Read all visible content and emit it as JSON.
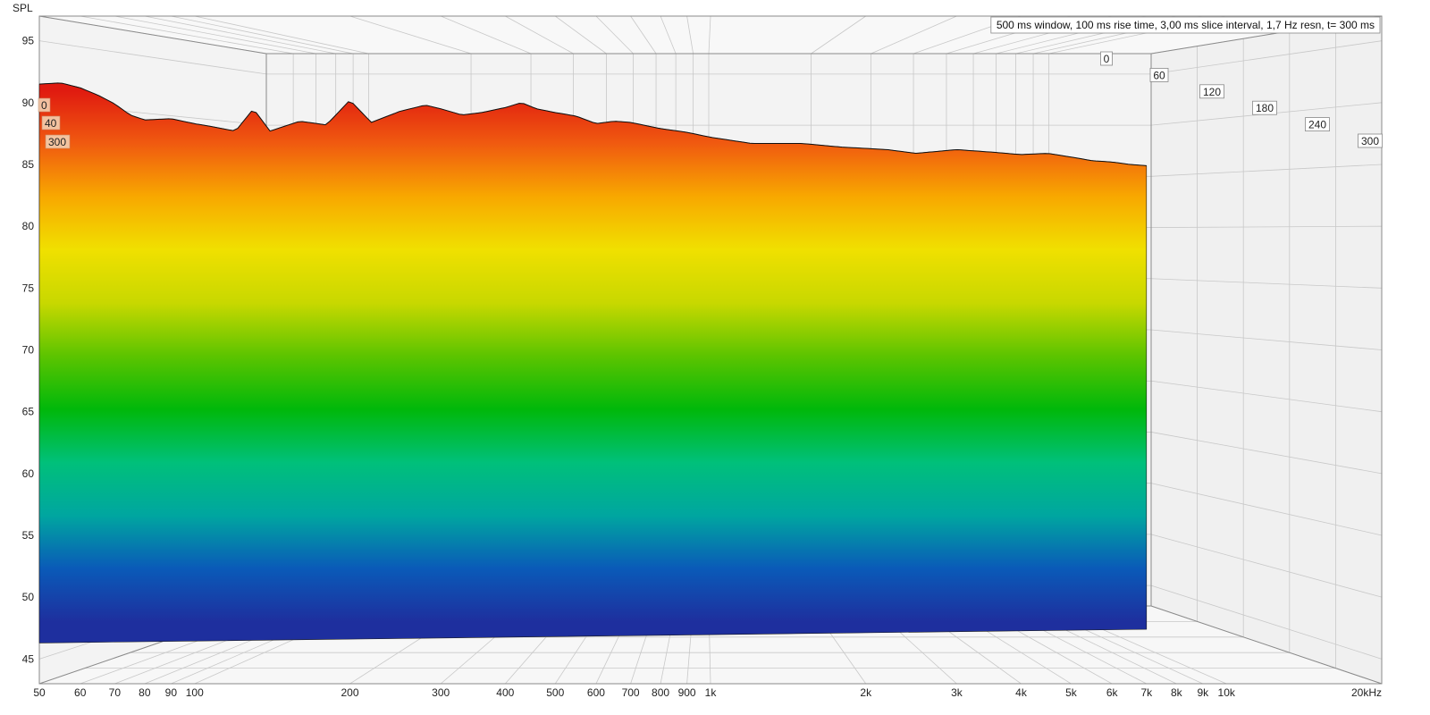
{
  "chart_data": {
    "type": "area",
    "subtype": "waterfall-3d",
    "title": "",
    "xlabel": "",
    "ylabel": "SPL",
    "x_scale": "log",
    "x_tick_labels": [
      "50",
      "60",
      "70",
      "80",
      "90",
      "100",
      "200",
      "300",
      "400",
      "500",
      "600",
      "700",
      "800",
      "900",
      "1k",
      "2k",
      "3k",
      "4k",
      "5k",
      "6k",
      "7k",
      "8k",
      "9k",
      "10k",
      "20kHz"
    ],
    "x_tick_values": [
      50,
      60,
      70,
      80,
      90,
      100,
      200,
      300,
      400,
      500,
      600,
      700,
      800,
      900,
      1000,
      2000,
      3000,
      4000,
      5000,
      6000,
      7000,
      8000,
      9000,
      10000,
      20000
    ],
    "y_ticks": [
      95,
      90,
      85,
      80,
      75,
      70,
      65,
      60,
      55,
      50,
      45
    ],
    "ylim": [
      43,
      97
    ],
    "xlim": [
      50,
      20000
    ],
    "depth_axis_labels": [
      "0",
      "60",
      "120",
      "180",
      "240",
      "300"
    ],
    "time_ms": [
      0,
      60,
      120,
      180,
      240,
      300
    ],
    "info_text": "500 ms window, 100 ms rise time, 3,00 ms slice interval, 1,7 Hz resn, t= 300 ms",
    "left_slice_labels": [
      "0",
      "40",
      "300"
    ],
    "grid": true,
    "front_slice": {
      "name": "0",
      "x": [
        50,
        55,
        60,
        65,
        70,
        75,
        80,
        90,
        100,
        110,
        120,
        130,
        140,
        160,
        180,
        200,
        220,
        250,
        280,
        300,
        330,
        360,
        400,
        430,
        460,
        500,
        550,
        600,
        650,
        700,
        800,
        900,
        1000,
        1200,
        1500,
        1800,
        2000,
        2200,
        2500,
        3000,
        3500,
        4000,
        4500,
        5000,
        5500,
        6000,
        6500,
        7000
      ],
      "y": [
        91.5,
        91.6,
        91.2,
        90.6,
        89.9,
        89.0,
        88.6,
        88.7,
        88.3,
        88.0,
        87.7,
        89.5,
        87.7,
        88.5,
        88.2,
        90.2,
        88.4,
        89.3,
        89.8,
        89.5,
        89.0,
        89.2,
        89.6,
        90.0,
        89.5,
        89.2,
        88.9,
        88.3,
        88.5,
        88.4,
        87.9,
        87.6,
        87.2,
        86.7,
        86.7,
        86.4,
        86.3,
        86.2,
        85.9,
        86.2,
        86.0,
        85.8,
        85.9,
        85.6,
        85.3,
        85.2,
        85.0,
        84.9
      ]
    },
    "decay_floor": [
      {
        "x": 50,
        "y": 47.5
      },
      {
        "x": 70,
        "y": 48.7
      },
      {
        "x": 100,
        "y": 48.9
      },
      {
        "x": 150,
        "y": 47.2
      },
      {
        "x": 200,
        "y": 48.1
      },
      {
        "x": 400,
        "y": 48.6
      },
      {
        "x": 1000,
        "y": 48.7
      },
      {
        "x": 7000,
        "y": 48.6
      }
    ],
    "colorscale": [
      "#1e2f9e",
      "#0a5ab8",
      "#00a6a0",
      "#00c07a",
      "#00b80a",
      "#5cc400",
      "#c8d800",
      "#f0e000",
      "#f8a800",
      "#f05a10",
      "#e01a10"
    ]
  }
}
